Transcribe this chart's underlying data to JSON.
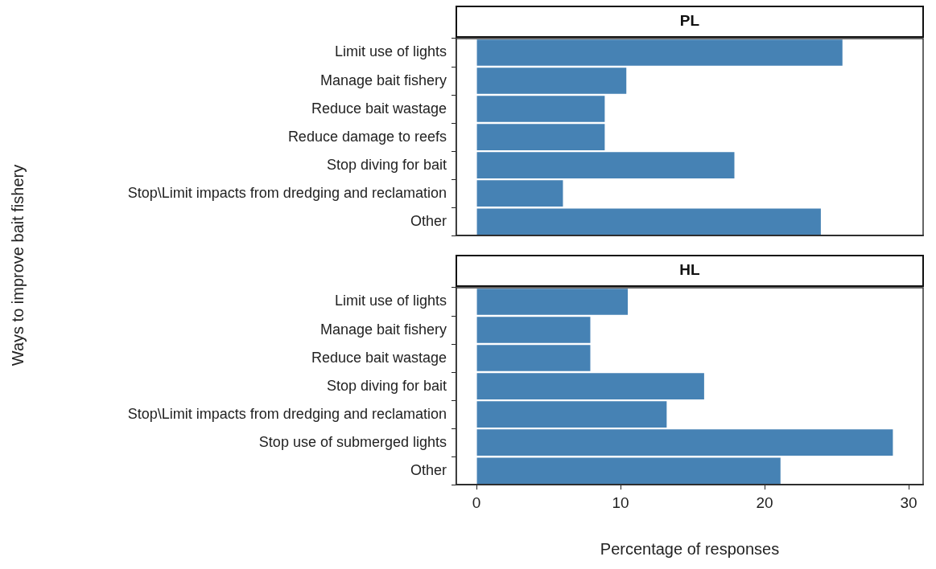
{
  "chart_data": [
    {
      "type": "bar",
      "title": "PL",
      "ylabel": "Ways to improve bait fishery",
      "orientation": "horizontal",
      "categories": [
        "Limit use of lights",
        "Manage bait fishery",
        "Reduce bait wastage",
        "Reduce damage to reefs",
        "Stop diving for bait",
        "Stop\\Limit impacts from dredging and reclamation",
        "Other"
      ],
      "series": [
        {
          "color": "#4682b4",
          "values": [
            25.4,
            10.4,
            8.9,
            8.9,
            17.9,
            6.0,
            23.9
          ]
        }
      ],
      "xlim": [
        -1.4,
        31.0
      ],
      "xticks": [
        0,
        10,
        20,
        30
      ],
      "tick_labels": "y",
      "grid": false,
      "legend": false
    },
    {
      "type": "bar",
      "title": "HL",
      "xlabel": "Percentage of responses",
      "orientation": "horizontal",
      "categories": [
        "Limit use of lights",
        "Manage bait fishery",
        "Reduce bait wastage",
        "Stop diving for bait",
        "Stop\\Limit impacts from dredging and reclamation",
        "Stop use of submerged lights",
        "Other"
      ],
      "series": [
        {
          "color": "#4682b4",
          "values": [
            10.5,
            7.9,
            7.9,
            15.8,
            13.2,
            28.9,
            21.1
          ]
        }
      ],
      "xlim": [
        -1.4,
        31.0
      ],
      "xticks": [
        0,
        10,
        20,
        30
      ],
      "grid": false,
      "legend": false
    }
  ]
}
